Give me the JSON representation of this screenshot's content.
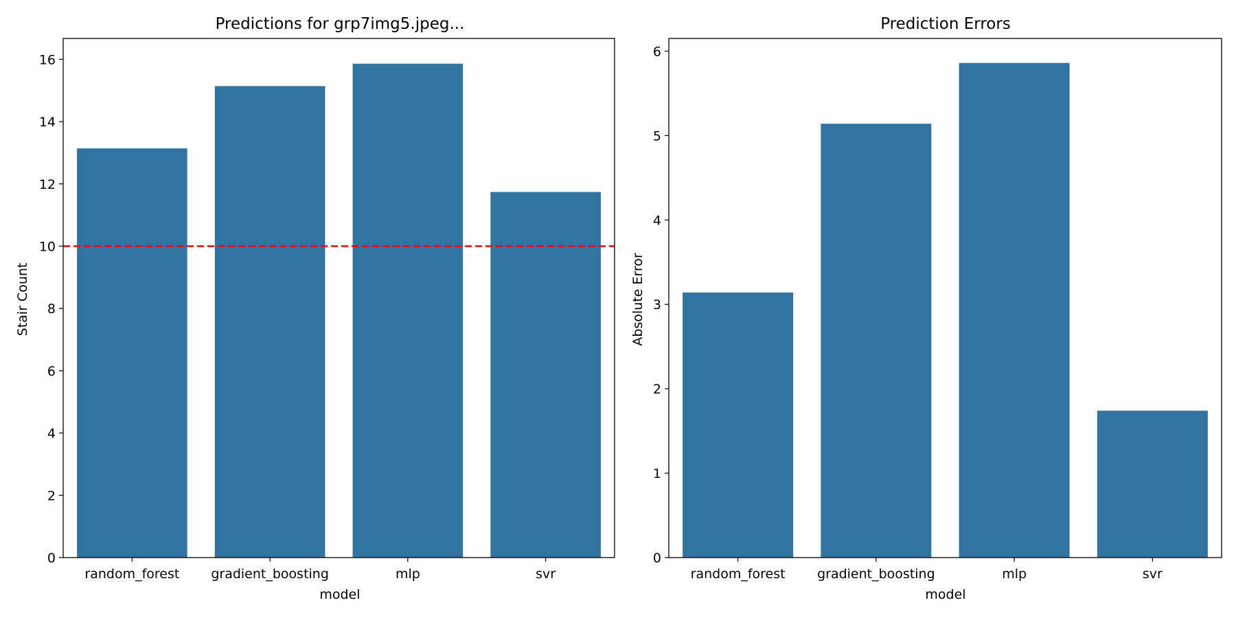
{
  "chart_data": [
    {
      "type": "bar",
      "title": "Predictions for grp7img5.jpeg...",
      "xlabel": "model",
      "ylabel": "Stair Count",
      "categories": [
        "random_forest",
        "gradient_boosting",
        "mlp",
        "svr"
      ],
      "values": [
        13.14,
        15.14,
        15.86,
        11.74
      ],
      "ylim": [
        0,
        16.67
      ],
      "yticks": [
        "0",
        "2",
        "4",
        "6",
        "8",
        "10",
        "12",
        "14",
        "16"
      ],
      "reference_line": {
        "value": 10,
        "style": "dashed",
        "color": "#ff0000"
      },
      "bar_color": "#3274a1",
      "grid": false
    },
    {
      "type": "bar",
      "title": "Prediction Errors",
      "xlabel": "model",
      "ylabel": "Absolute Error",
      "categories": [
        "random_forest",
        "gradient_boosting",
        "mlp",
        "svr"
      ],
      "values": [
        3.14,
        5.14,
        5.86,
        1.74
      ],
      "ylim": [
        0,
        6.15
      ],
      "yticks": [
        "0",
        "1",
        "2",
        "3",
        "4",
        "5",
        "6"
      ],
      "bar_color": "#3274a1",
      "grid": false
    }
  ]
}
